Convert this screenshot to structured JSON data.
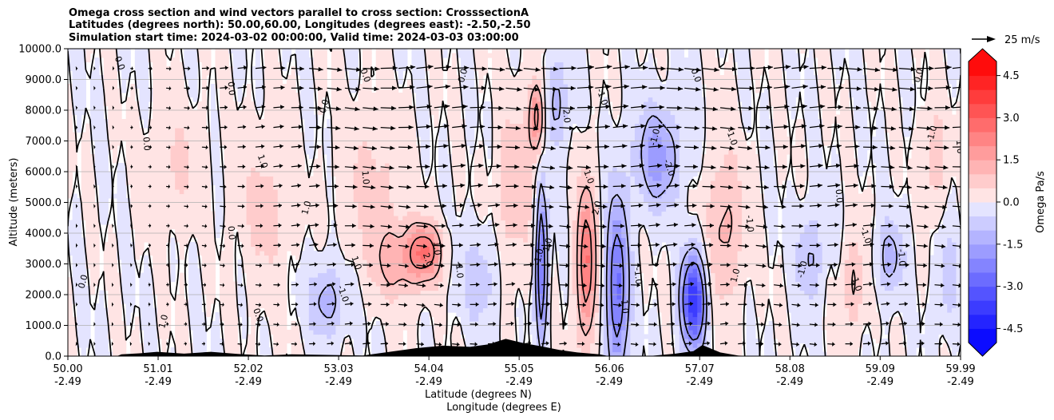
{
  "chart_data": {
    "type": "heatmap",
    "title_lines": [
      "Omega cross section and wind vectors parallel to cross section: CrosssectionA",
      "Latitudes (degrees north): 50.00,60.00, Longitudes (degrees east): -2.50,-2.50",
      "Simulation start time: 2024-03-02 00:00:00, Valid time: 2024-03-03 03:00:00"
    ],
    "ylabel": "Altitude (meters)",
    "xlabel_lines": [
      "Latitude (degrees N)",
      "Longitude (degrees E)"
    ],
    "ylim": [
      0,
      10000
    ],
    "y_ticks": [
      0,
      1000,
      2000,
      3000,
      4000,
      5000,
      6000,
      7000,
      8000,
      9000,
      10000
    ],
    "y_tick_labels": [
      "0.0",
      "1000.0",
      "2000.0",
      "3000.0",
      "4000.0",
      "5000.0",
      "6000.0",
      "7000.0",
      "8000.0",
      "9000.0",
      "10000.0"
    ],
    "xlim": [
      50.0,
      59.99
    ],
    "x_ticks": [
      50.0,
      51.01,
      52.02,
      53.03,
      54.04,
      55.05,
      56.06,
      57.07,
      58.08,
      59.09,
      59.99
    ],
    "x_tick_lat": [
      "50.00",
      "51.01",
      "52.02",
      "53.03",
      "54.04",
      "55.05",
      "56.06",
      "57.07",
      "58.08",
      "59.09",
      "59.99"
    ],
    "x_tick_lon": [
      "-2.49",
      "-2.49",
      "-2.49",
      "-2.49",
      "-2.49",
      "-2.49",
      "-2.49",
      "-2.49",
      "-2.49",
      "-2.49",
      "-2.49"
    ],
    "grid": "horizontal",
    "colorbar": {
      "label": "Omega Pa/s",
      "vmin": -5.0,
      "vmax": 5.0,
      "levels": 20,
      "extend": "both",
      "ticks": [
        "-4.5",
        "-3.0",
        "-1.5",
        "0.0",
        "1.5",
        "3.0",
        "4.5"
      ],
      "tick_values": [
        -4.5,
        -3.0,
        -1.5,
        0.0,
        1.5,
        3.0,
        4.5
      ],
      "neg_color": "#0000ff",
      "pos_color": "#ff0000"
    },
    "quiver_key": {
      "label": "25 m/s",
      "speed": 25
    },
    "features": [
      {
        "lat": 51.2,
        "alt": 6200,
        "omega": 0.6,
        "wlat": 0.3,
        "walt": 1800
      },
      {
        "lat": 52.2,
        "alt": 4800,
        "omega": 0.7,
        "wlat": 0.25,
        "walt": 2500
      },
      {
        "lat": 52.9,
        "alt": 1800,
        "omega": -1.3,
        "wlat": 0.2,
        "walt": 1200
      },
      {
        "lat": 53.4,
        "alt": 5600,
        "omega": 0.7,
        "wlat": 0.35,
        "walt": 2200
      },
      {
        "lat": 53.7,
        "alt": 3100,
        "omega": 1.3,
        "wlat": 0.3,
        "walt": 1200
      },
      {
        "lat": 54.0,
        "alt": 3400,
        "omega": 2.2,
        "wlat": 0.18,
        "walt": 900
      },
      {
        "lat": 54.6,
        "alt": 2500,
        "omega": -0.9,
        "wlat": 0.2,
        "walt": 1500
      },
      {
        "lat": 55.0,
        "alt": 5500,
        "omega": 1.0,
        "wlat": 0.2,
        "walt": 2500
      },
      {
        "lat": 55.25,
        "alt": 7800,
        "omega": 2.6,
        "wlat": 0.08,
        "walt": 1200
      },
      {
        "lat": 55.3,
        "alt": 3000,
        "omega": -3.2,
        "wlat": 0.06,
        "walt": 2500
      },
      {
        "lat": 55.45,
        "alt": 8200,
        "omega": -1.2,
        "wlat": 0.15,
        "walt": 1500
      },
      {
        "lat": 55.8,
        "alt": 3000,
        "omega": 2.8,
        "wlat": 0.1,
        "walt": 2500
      },
      {
        "lat": 56.15,
        "alt": 2200,
        "omega": -2.8,
        "wlat": 0.12,
        "walt": 3000
      },
      {
        "lat": 56.6,
        "alt": 6500,
        "omega": -1.8,
        "wlat": 0.25,
        "walt": 1600
      },
      {
        "lat": 57.0,
        "alt": 1800,
        "omega": -4.2,
        "wlat": 0.13,
        "walt": 1500
      },
      {
        "lat": 57.35,
        "alt": 4200,
        "omega": 1.2,
        "wlat": 0.2,
        "walt": 2500
      },
      {
        "lat": 58.3,
        "alt": 3200,
        "omega": -1.1,
        "wlat": 0.15,
        "walt": 1500
      },
      {
        "lat": 58.8,
        "alt": 2400,
        "omega": 1.1,
        "wlat": 0.12,
        "walt": 1500
      },
      {
        "lat": 59.2,
        "alt": 3200,
        "omega": -1.3,
        "wlat": 0.15,
        "walt": 1200
      },
      {
        "lat": 59.7,
        "alt": 6500,
        "omega": 1.0,
        "wlat": 0.12,
        "walt": 1500
      },
      {
        "lat": 59.85,
        "alt": 2500,
        "omega": -1.0,
        "wlat": 0.1,
        "walt": 1500
      }
    ],
    "contour_labels": [
      {
        "text": "0.0",
        "lat": 50.55,
        "alt": 9500
      },
      {
        "text": "0.0",
        "lat": 51.8,
        "alt": 8700
      },
      {
        "text": "0.0",
        "lat": 52.9,
        "alt": 8100
      },
      {
        "text": "0.0",
        "lat": 53.3,
        "alt": 9100
      },
      {
        "text": "0.0",
        "lat": 51.8,
        "alt": 4000
      },
      {
        "text": "0.0",
        "lat": 50.2,
        "alt": 2400
      },
      {
        "text": "0.0",
        "lat": 52.1,
        "alt": 1300
      },
      {
        "text": "0.0",
        "lat": 50.85,
        "alt": 6900
      },
      {
        "text": "0.0",
        "lat": 54.45,
        "alt": 9100
      },
      {
        "text": "0.0",
        "lat": 57.0,
        "alt": 9100
      },
      {
        "text": "0.0",
        "lat": 58.6,
        "alt": 5200
      },
      {
        "text": "0.0",
        "lat": 59.55,
        "alt": 9100
      },
      {
        "text": "1.0",
        "lat": 52.15,
        "alt": 6300
      },
      {
        "text": "1.0",
        "lat": 53.3,
        "alt": 5800
      },
      {
        "text": "1.0",
        "lat": 52.7,
        "alt": 4800
      },
      {
        "text": "1.0",
        "lat": 53.2,
        "alt": 3000
      },
      {
        "text": "1.0",
        "lat": 54.1,
        "alt": 3500
      },
      {
        "text": "1.0",
        "lat": 55.4,
        "alt": 3600
      },
      {
        "text": "1.0",
        "lat": 55.8,
        "alt": 5800
      },
      {
        "text": "1.0",
        "lat": 56.2,
        "alt": 1600
      },
      {
        "text": "1.0",
        "lat": 57.5,
        "alt": 2600
      },
      {
        "text": "1.0",
        "lat": 58.8,
        "alt": 2300
      },
      {
        "text": "1.0",
        "lat": 59.95,
        "alt": 6800
      },
      {
        "text": "1.0",
        "lat": 51.1,
        "alt": 1100
      },
      {
        "text": "2.0",
        "lat": 54.0,
        "alt": 3100
      },
      {
        "text": "2.0",
        "lat": 55.55,
        "alt": 7800
      },
      {
        "text": "2.0",
        "lat": 55.95,
        "alt": 4800
      },
      {
        "text": "-1.0",
        "lat": 53.05,
        "alt": 2000
      },
      {
        "text": "-1.0",
        "lat": 54.35,
        "alt": 2800
      },
      {
        "text": "-1.0",
        "lat": 55.3,
        "alt": 3200
      },
      {
        "text": "-1.0",
        "lat": 55.95,
        "alt": 8400
      },
      {
        "text": "-1.0",
        "lat": 56.35,
        "alt": 2600
      },
      {
        "text": "-1.0",
        "lat": 56.6,
        "alt": 7100
      },
      {
        "text": "-1.0",
        "lat": 57.4,
        "alt": 7100
      },
      {
        "text": "-1.0",
        "lat": 57.6,
        "alt": 4300
      },
      {
        "text": "-1.0",
        "lat": 58.25,
        "alt": 2800
      },
      {
        "text": "-1.0",
        "lat": 58.9,
        "alt": 3900
      },
      {
        "text": "-1.0",
        "lat": 59.3,
        "alt": 3200
      },
      {
        "text": "-1.0",
        "lat": 59.7,
        "alt": 7200
      },
      {
        "text": "-2.0",
        "lat": 56.7,
        "alt": 6100
      }
    ],
    "terrain": [
      {
        "lat": 50.0,
        "h": 0
      },
      {
        "lat": 50.55,
        "h": 0
      },
      {
        "lat": 50.6,
        "h": 60
      },
      {
        "lat": 50.8,
        "h": 90
      },
      {
        "lat": 51.0,
        "h": 140
      },
      {
        "lat": 51.3,
        "h": 80
      },
      {
        "lat": 51.6,
        "h": 140
      },
      {
        "lat": 51.9,
        "h": 70
      },
      {
        "lat": 52.2,
        "h": 20
      },
      {
        "lat": 52.5,
        "h": 60
      },
      {
        "lat": 52.9,
        "h": 40
      },
      {
        "lat": 53.3,
        "h": 20
      },
      {
        "lat": 53.6,
        "h": 140
      },
      {
        "lat": 53.9,
        "h": 260
      },
      {
        "lat": 54.2,
        "h": 340
      },
      {
        "lat": 54.5,
        "h": 300
      },
      {
        "lat": 54.7,
        "h": 380
      },
      {
        "lat": 54.9,
        "h": 560
      },
      {
        "lat": 55.1,
        "h": 420
      },
      {
        "lat": 55.3,
        "h": 320
      },
      {
        "lat": 55.5,
        "h": 200
      },
      {
        "lat": 55.7,
        "h": 120
      },
      {
        "lat": 55.95,
        "h": 60
      },
      {
        "lat": 56.05,
        "h": 0
      },
      {
        "lat": 56.5,
        "h": 0
      },
      {
        "lat": 56.8,
        "h": 80
      },
      {
        "lat": 57.0,
        "h": 160
      },
      {
        "lat": 57.1,
        "h": 360
      },
      {
        "lat": 57.3,
        "h": 120
      },
      {
        "lat": 57.5,
        "h": 20
      },
      {
        "lat": 57.6,
        "h": 0
      },
      {
        "lat": 59.99,
        "h": 0
      }
    ]
  }
}
